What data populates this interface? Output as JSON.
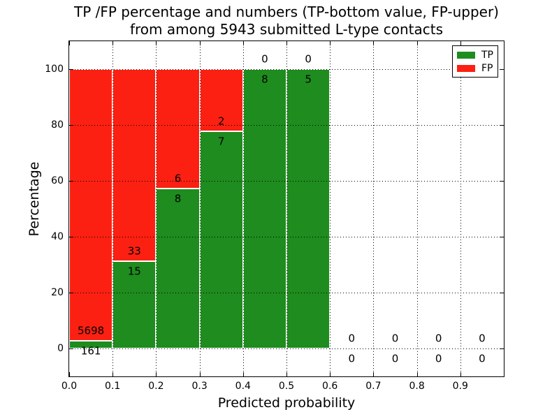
{
  "chart_data": {
    "type": "bar",
    "stacked": true,
    "title_lines": [
      "TP /FP percentage and numbers (TP-bottom value, FP-upper)",
      "from among 5943 submitted L-type contacts"
    ],
    "total_submitted_contacts": 5943,
    "xlabel": "Predicted probability",
    "ylabel": "Percentage",
    "xlim": [
      0.0,
      1.0
    ],
    "ylim": [
      -10,
      110
    ],
    "xtick_labels": [
      "0.0",
      "0.1",
      "0.2",
      "0.3",
      "0.4",
      "0.5",
      "0.6",
      "0.7",
      "0.8",
      "0.9"
    ],
    "ytick_values": [
      0,
      20,
      40,
      60,
      80,
      100
    ],
    "grid": "dotted, both axes, drawn over bars",
    "bar_edge_color": "#ffffff",
    "legend": {
      "position": "upper right",
      "entries": [
        {
          "label": "TP",
          "color": "#1e8c1e"
        },
        {
          "label": "FP",
          "color": "#fb2012"
        }
      ]
    },
    "bins": [
      {
        "x0": 0.0,
        "x1": 0.1,
        "tp": 161,
        "fp": 5698
      },
      {
        "x0": 0.1,
        "x1": 0.2,
        "tp": 15,
        "fp": 33
      },
      {
        "x0": 0.2,
        "x1": 0.3,
        "tp": 8,
        "fp": 6
      },
      {
        "x0": 0.3,
        "x1": 0.4,
        "tp": 7,
        "fp": 2
      },
      {
        "x0": 0.4,
        "x1": 0.5,
        "tp": 8,
        "fp": 0
      },
      {
        "x0": 0.5,
        "x1": 0.6,
        "tp": 5,
        "fp": 0
      },
      {
        "x0": 0.6,
        "x1": 0.7,
        "tp": 0,
        "fp": 0
      },
      {
        "x0": 0.7,
        "x1": 0.8,
        "tp": 0,
        "fp": 0
      },
      {
        "x0": 0.8,
        "x1": 0.9,
        "tp": 0,
        "fp": 0
      },
      {
        "x0": 0.9,
        "x1": 1.0,
        "tp": 0,
        "fp": 0
      }
    ],
    "bar_value_semantics": "green segment height = TP/(TP+FP)*100 %, red segment fills to 100%; FP count printed above the TP/FP boundary, TP count printed below it"
  }
}
